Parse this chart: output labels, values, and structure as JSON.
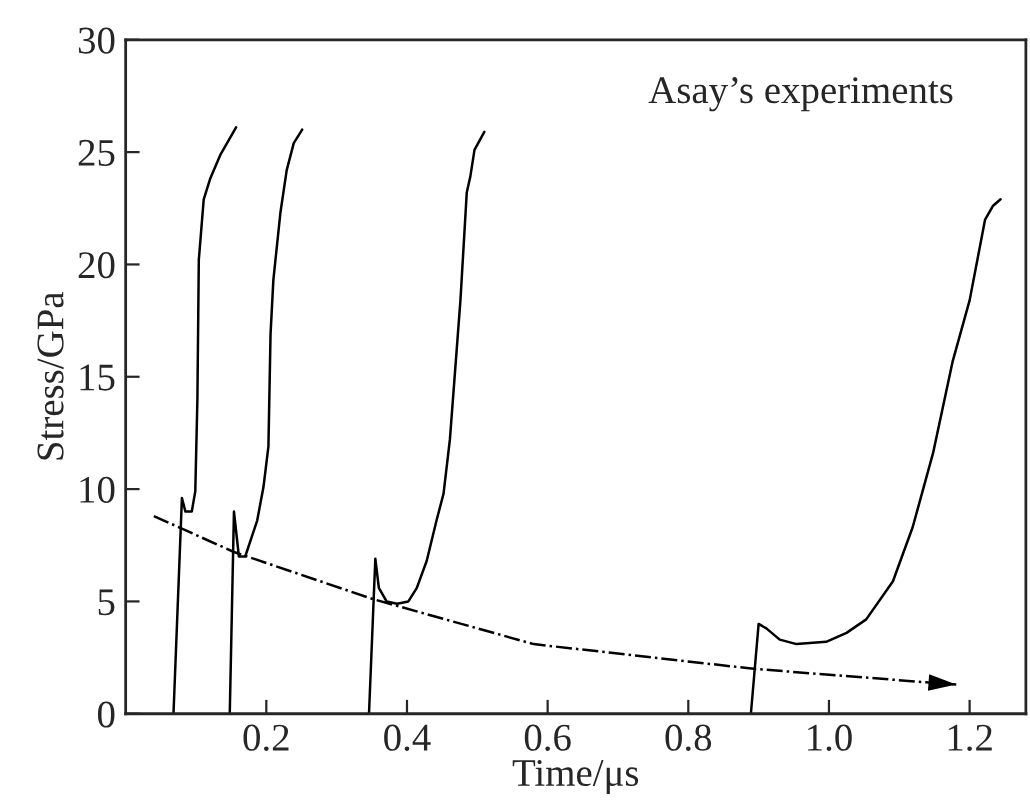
{
  "chart_data": {
    "type": "line",
    "xlabel": "Time/μs",
    "ylabel": "Stress/GPa",
    "annotations": [
      "Asay’s experiments"
    ],
    "xlim": [
      0,
      1.28
    ],
    "ylim": [
      0,
      30
    ],
    "xticks": [
      0.2,
      0.4,
      0.6,
      0.8,
      {
        "value": 1.0,
        "label": "1.0"
      },
      1.2
    ],
    "yticks": [
      0,
      5,
      10,
      15,
      20,
      25,
      30
    ],
    "grid": false,
    "legend": false,
    "marker": "none",
    "series": [
      {
        "color": "#000000",
        "line_style": "solid",
        "x": [
          0.068,
          0.08,
          0.085,
          0.094,
          0.099,
          0.102,
          0.104,
          0.111,
          0.12,
          0.135,
          0.157
        ],
        "values": [
          0,
          9.6,
          9.0,
          9.0,
          9.9,
          14,
          20.2,
          22.9,
          23.8,
          24.9,
          26.1
        ]
      },
      {
        "color": "#000000",
        "line_style": "solid",
        "x": [
          0.148,
          0.154,
          0.161,
          0.17,
          0.187,
          0.196,
          0.203,
          0.206,
          0.21,
          0.22,
          0.229,
          0.239,
          0.251
        ],
        "values": [
          0,
          9.0,
          7.0,
          7.0,
          8.6,
          10.1,
          11.9,
          16.9,
          19.3,
          22.3,
          24.2,
          25.4,
          26.0
        ]
      },
      {
        "color": "#000000",
        "line_style": "solid",
        "x": [
          0.346,
          0.355,
          0.36,
          0.371,
          0.386,
          0.402,
          0.414,
          0.428,
          0.442,
          0.452,
          0.461,
          0.476,
          0.485,
          0.49,
          0.496,
          0.51
        ],
        "values": [
          0,
          6.9,
          5.6,
          5.0,
          4.9,
          5.0,
          5.6,
          6.8,
          8.6,
          9.8,
          12.2,
          18.4,
          23.2,
          23.9,
          25.1,
          25.9
        ]
      },
      {
        "color": "#000000",
        "line_style": "solid",
        "x": [
          0.889,
          0.9,
          0.911,
          0.93,
          0.954,
          0.996,
          1.025,
          1.053,
          1.091,
          1.119,
          1.148,
          1.176,
          1.2,
          1.222,
          1.233,
          1.244
        ],
        "values": [
          0,
          4.0,
          3.8,
          3.3,
          3.1,
          3.2,
          3.6,
          4.2,
          5.9,
          8.3,
          11.6,
          15.7,
          18.4,
          22.0,
          22.6,
          22.9
        ]
      },
      {
        "color": "#000000",
        "line_style": "dashdot",
        "x": [
          0.04,
          0.154,
          0.352,
          0.58,
          0.893,
          1.138,
          1.181
        ],
        "values": [
          8.8,
          7.2,
          5.1,
          3.1,
          2.0,
          1.4,
          1.3
        ]
      }
    ]
  }
}
